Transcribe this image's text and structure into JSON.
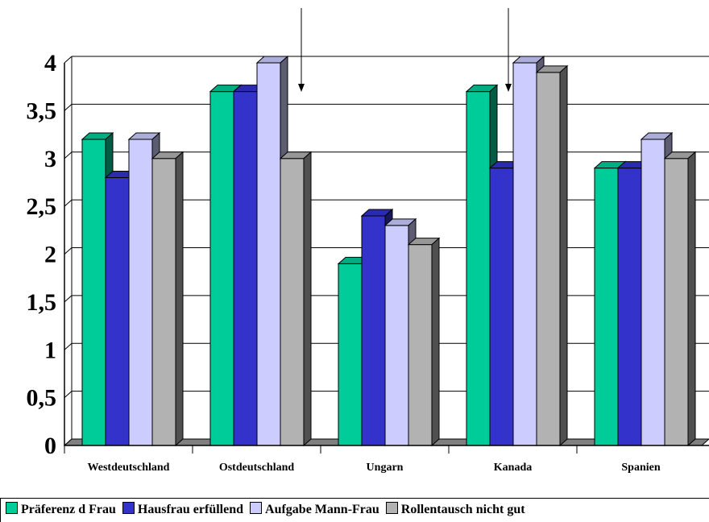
{
  "chart_data": {
    "type": "bar",
    "categories": [
      "Westdeutschland",
      "Ostdeutschland",
      "Ungarn",
      "Kanada",
      "Spanien"
    ],
    "series": [
      {
        "name": "Präferenz d Frau",
        "color": "#00cc99",
        "values": [
          3.2,
          3.7,
          1.9,
          3.7,
          2.9
        ]
      },
      {
        "name": "Hausfrau erfüllend",
        "color": "#3333cc",
        "values": [
          2.8,
          3.7,
          2.4,
          2.9,
          2.9
        ]
      },
      {
        "name": "Aufgabe Mann-Frau",
        "color": "#ccccff",
        "values": [
          3.2,
          4.0,
          2.3,
          4.0,
          3.2
        ]
      },
      {
        "name": "Rollentausch nicht gut",
        "color": "#b2b2b2",
        "values": [
          3.0,
          3.0,
          2.1,
          3.9,
          3.0
        ]
      }
    ],
    "ylim": [
      0,
      4
    ],
    "yticks": [
      "0",
      "0,5",
      "1",
      "1,5",
      "2",
      "2,5",
      "3",
      "3,5",
      "4"
    ],
    "grid": true,
    "legend_position": "bottom",
    "annotations": [
      "arrow pointing down above Ostdeutschland",
      "arrow pointing down above Kanada"
    ]
  },
  "legend": {
    "items": [
      {
        "label": "Präferenz d Frau",
        "color": "#00cc99"
      },
      {
        "label": "Hausfrau erfüllend",
        "color": "#3333cc"
      },
      {
        "label": "Aufgabe Mann-Frau",
        "color": "#ccccff"
      },
      {
        "label": "Rollentausch nicht gut",
        "color": "#b2b2b2"
      }
    ]
  }
}
